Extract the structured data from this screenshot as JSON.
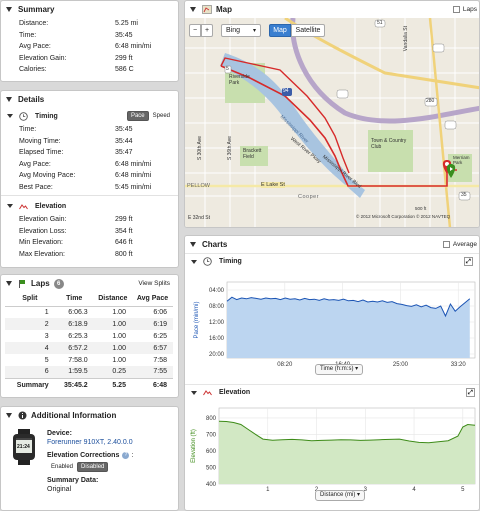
{
  "summary": {
    "title": "Summary",
    "rows": [
      {
        "label": "Distance:",
        "value": "5.25 mi"
      },
      {
        "label": "Time:",
        "value": "35:45"
      },
      {
        "label": "Avg Pace:",
        "value": "6:48 min/mi"
      },
      {
        "label": "Elevation Gain:",
        "value": "299 ft"
      },
      {
        "label": "Calories:",
        "value": "586 C"
      }
    ]
  },
  "details": {
    "title": "Details",
    "timing": {
      "title": "Timing",
      "pace_btn": "Pace",
      "speed_btn": "Speed",
      "rows": [
        {
          "label": "Time:",
          "value": "35:45"
        },
        {
          "label": "Moving Time:",
          "value": "35:44"
        },
        {
          "label": "Elapsed Time:",
          "value": "35:47"
        },
        {
          "label": "Avg Pace:",
          "value": "6:48 min/mi"
        },
        {
          "label": "Avg Moving Pace:",
          "value": "6:48 min/mi"
        },
        {
          "label": "Best Pace:",
          "value": "5:45 min/mi"
        }
      ]
    },
    "elevation": {
      "title": "Elevation",
      "rows": [
        {
          "label": "Elevation Gain:",
          "value": "299 ft"
        },
        {
          "label": "Elevation Loss:",
          "value": "354 ft"
        },
        {
          "label": "Min Elevation:",
          "value": "646 ft"
        },
        {
          "label": "Max Elevation:",
          "value": "800 ft"
        }
      ]
    }
  },
  "laps": {
    "title": "Laps",
    "count": "6",
    "view_splits": "View Splits",
    "headers": [
      "Split",
      "Time",
      "Distance",
      "Avg Pace"
    ],
    "rows": [
      [
        "1",
        "6:06.3",
        "1.00",
        "6:06"
      ],
      [
        "2",
        "6:18.9",
        "1.00",
        "6:19"
      ],
      [
        "3",
        "6:25.3",
        "1.00",
        "6:25"
      ],
      [
        "4",
        "6:57.2",
        "1.00",
        "6:57"
      ],
      [
        "5",
        "7:58.0",
        "1.00",
        "7:58"
      ],
      [
        "6",
        "1:59.5",
        "0.25",
        "7:55"
      ]
    ],
    "summary_row": [
      "Summary",
      "35:45.2",
      "5.25",
      "6:48"
    ]
  },
  "additional": {
    "title": "Additional Information",
    "device_label": "Device:",
    "device_value": "Forerunner 910XT, 2.40.0.0",
    "watch_face": "21:24",
    "elev_corr_label": "Elevation Corrections",
    "enabled": "Enabled",
    "disabled": "Disabled",
    "summary_data_label": "Summary Data:",
    "summary_data_value": "Original"
  },
  "map": {
    "title": "Map",
    "laps_check": "Laps",
    "zoom_minus": "−",
    "zoom_plus": "+",
    "provider": "Bing",
    "map_btn": "Map",
    "satellite_btn": "Satellite",
    "copyright": "© 2012 Microsoft Corporation  © 2012 NAVTEQ",
    "scale": "500 ft",
    "labels": {
      "riverside": "Riverside Park",
      "brackett": "Brackett Field",
      "town": "Town & Country Club",
      "lake": "E Lake St",
      "cooper": "Cooper",
      "fellow": "PELLOW",
      "ave32": "E 32nd St",
      "ave30": "S 30th Ave",
      "ave36": "S 36th Ave",
      "mrb": "Mississippi River Blvd",
      "wrp": "West River Pkwy",
      "hw94": "94",
      "hw35": "35",
      "hw280": "280",
      "hw51": "51",
      "hw5": "5",
      "vandalia": "Vandalia St",
      "merriam": "Merriam Park",
      "w_river": "Mississippi River"
    }
  },
  "charts": {
    "title": "Charts",
    "average_label": "Average",
    "timing": {
      "title": "Timing",
      "ylabel": "Pace (min/mi)",
      "xselect": "Time (h:m:s)"
    },
    "elevation": {
      "title": "Elevation",
      "ylabel": "Elevation (ft)",
      "xselect": "Distance (mi)"
    }
  },
  "chart_data": [
    {
      "type": "area",
      "title": "Timing",
      "ylabel": "Pace (min/mi)",
      "xlabel": "Time (h:m:s)",
      "x_ticks": [
        "08:20",
        "16:40",
        "25:00",
        "33:20"
      ],
      "y_ticks": [
        "04:00",
        "08:00",
        "12:00",
        "16:00",
        "20:00"
      ],
      "ylim_min": [
        2,
        21
      ],
      "y_inverted": true,
      "x_min": [
        0,
        35.75
      ],
      "series": [
        {
          "values_min_per_mi": [
            6.8,
            5.8,
            6.4,
            6.0,
            6.2,
            5.9,
            6.1,
            6.3,
            6.0,
            6.2,
            6.1,
            6.4,
            6.0,
            6.3,
            6.2,
            6.5,
            6.1,
            6.4,
            6.3,
            6.6,
            6.2,
            6.5,
            6.4,
            6.6,
            6.3,
            6.7,
            6.6,
            6.9,
            6.5,
            7.0,
            6.8,
            7.0,
            6.7,
            7.1,
            6.9,
            7.4,
            7.6,
            7.9,
            8.1,
            7.7,
            8.2,
            7.8,
            8.4,
            8.6,
            8.0,
            10.5,
            7.5,
            9.3,
            8.2,
            6.2
          ],
          "x_min": [
            0,
            0.7,
            1.4,
            2.1,
            2.8,
            3.5,
            4.2,
            4.9,
            5.6,
            6.3,
            7.0,
            7.7,
            8.4,
            9.1,
            9.8,
            10.5,
            11.2,
            11.9,
            12.6,
            13.3,
            14.0,
            14.7,
            15.4,
            16.1,
            16.8,
            17.5,
            18.2,
            18.9,
            19.6,
            20.3,
            21.0,
            21.7,
            22.4,
            23.1,
            23.8,
            24.5,
            25.2,
            25.9,
            26.6,
            27.3,
            28.0,
            28.7,
            29.4,
            30.1,
            30.8,
            31.5,
            32.2,
            32.9,
            33.6,
            35.0
          ]
        }
      ]
    },
    {
      "type": "area",
      "title": "Elevation",
      "ylabel": "Elevation (ft)",
      "xlabel": "Distance (mi)",
      "x_ticks": [
        "1",
        "2",
        "3",
        "4",
        "5"
      ],
      "y_ticks": [
        "400",
        "500",
        "600",
        "700",
        "800"
      ],
      "ylim": [
        400,
        860
      ],
      "xlim": [
        0,
        5.25
      ],
      "series": [
        {
          "x": [
            0,
            0.15,
            0.3,
            0.45,
            0.6,
            0.75,
            0.9,
            1.1,
            1.3,
            1.5,
            1.7,
            1.9,
            2.1,
            2.3,
            2.5,
            2.7,
            2.9,
            3.1,
            3.3,
            3.5,
            3.7,
            3.9,
            4.1,
            4.3,
            4.5,
            4.7,
            4.9,
            5.0,
            5.1,
            5.25
          ],
          "values": [
            780,
            778,
            772,
            760,
            730,
            700,
            672,
            665,
            668,
            670,
            667,
            662,
            664,
            666,
            668,
            667,
            664,
            666,
            668,
            670,
            672,
            660,
            652,
            650,
            656,
            662,
            690,
            745,
            760,
            755
          ]
        }
      ]
    }
  ],
  "colors": {
    "pace_line": "#1b54b4",
    "pace_fill": "#bcd5f0",
    "elev_line": "#3d8b18",
    "elev_fill": "#d2e8c4",
    "route": "#d62a2a",
    "water": "#a8c4e0",
    "park": "#c8dfae"
  }
}
